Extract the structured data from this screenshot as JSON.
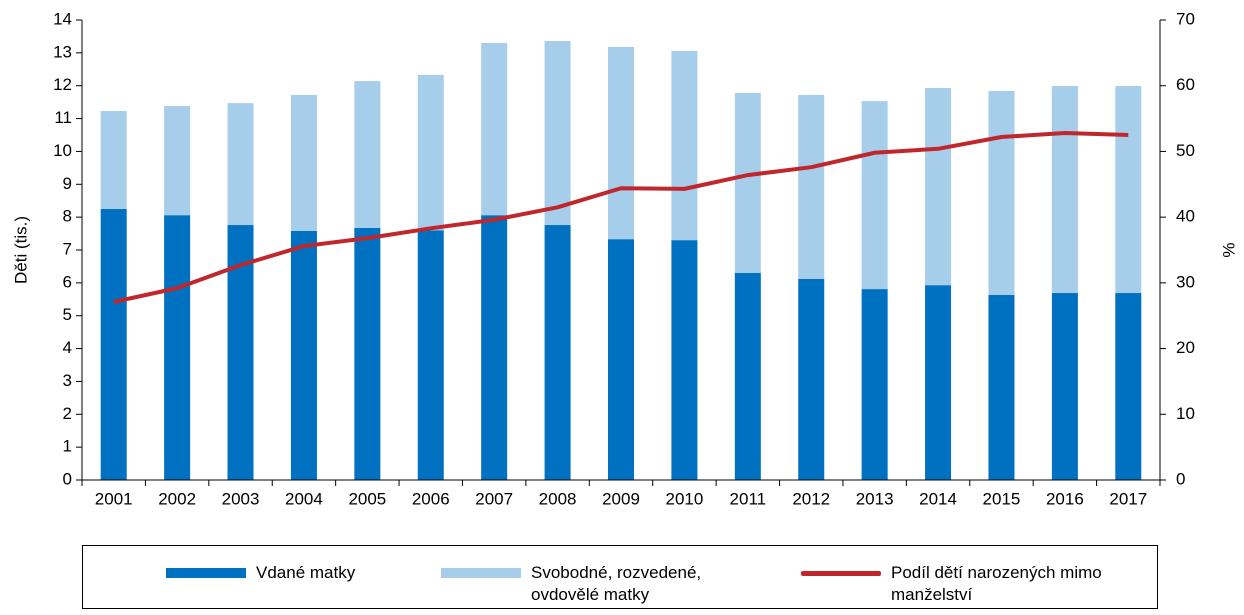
{
  "chart_data": {
    "type": "bar",
    "stacked": true,
    "categories": [
      "2001",
      "2002",
      "2003",
      "2004",
      "2005",
      "2006",
      "2007",
      "2008",
      "2009",
      "2010",
      "2011",
      "2012",
      "2013",
      "2014",
      "2015",
      "2016",
      "2017"
    ],
    "series": [
      {
        "name": "Vdané matky",
        "type": "bar",
        "color": "#0070c0",
        "values": [
          8.25,
          8.06,
          7.76,
          7.58,
          7.67,
          7.6,
          8.06,
          7.76,
          7.33,
          7.3,
          6.3,
          6.12,
          5.81,
          5.93,
          5.63,
          5.69,
          5.69
        ]
      },
      {
        "name": "Svobodné, rozvedené, ovdovělé matky",
        "type": "bar",
        "color": "#a6cde9",
        "values": [
          2.98,
          3.32,
          3.71,
          4.14,
          4.47,
          4.73,
          5.24,
          5.6,
          5.85,
          5.76,
          5.48,
          5.6,
          5.72,
          6.0,
          6.21,
          6.3,
          6.3
        ]
      },
      {
        "name": "Podíl dětí narozených mimo manželství",
        "type": "line",
        "axis": "y2",
        "color": "#c0272d",
        "values": [
          27.1,
          29.2,
          32.7,
          35.6,
          36.8,
          38.3,
          39.6,
          41.5,
          44.4,
          44.3,
          46.4,
          47.6,
          49.8,
          50.4,
          52.2,
          52.8,
          52.5
        ]
      }
    ],
    "ylabel": "Děti (tis.)",
    "y2label": "%",
    "ylim": [
      0,
      14
    ],
    "yticks": [
      0,
      1,
      2,
      3,
      4,
      5,
      6,
      7,
      8,
      9,
      10,
      11,
      12,
      13,
      14
    ],
    "y2lim": [
      0,
      70
    ],
    "y2ticks": [
      0,
      10,
      20,
      30,
      40,
      50,
      60,
      70
    ],
    "legend": "bottom"
  }
}
